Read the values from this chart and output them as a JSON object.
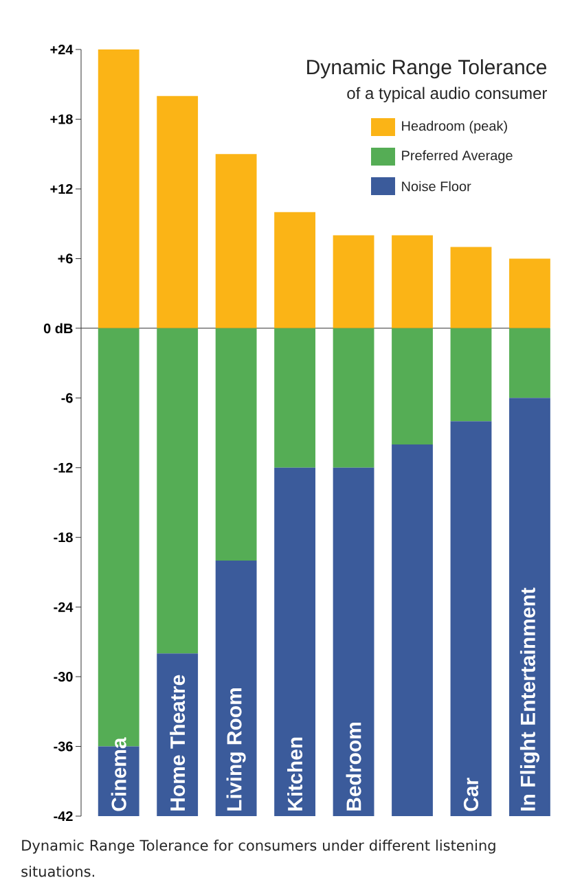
{
  "chart_data": {
    "type": "bar",
    "title": "Dynamic Range Tolerance",
    "subtitle": "of a typical audio consumer",
    "categories": [
      "Cinema",
      "Home Theatre",
      "Living Room",
      "Kitchen",
      "Bedroom",
      null,
      "Car",
      "In Flight Entertainment"
    ],
    "series": [
      {
        "name": "Headroom (peak)",
        "color": "#fbb416",
        "values": [
          24,
          20,
          15,
          10,
          8,
          8,
          7,
          6
        ]
      },
      {
        "name": "Preferred Average",
        "color": "#55ad55",
        "values": [
          -36,
          -28,
          -20,
          -12,
          -12,
          -10,
          -8,
          -6
        ]
      },
      {
        "name": "Noise Floor",
        "color": "#3b5b9b",
        "values": [
          -6,
          -14,
          -22,
          -30,
          -30,
          -32,
          -34,
          -36
        ]
      }
    ],
    "stacked": true,
    "ylim": [
      -42,
      24
    ],
    "yticks": [
      {
        "value": 24,
        "label": "+24"
      },
      {
        "value": 18,
        "label": "+18"
      },
      {
        "value": 12,
        "label": "+12"
      },
      {
        "value": 6,
        "label": "+6"
      },
      {
        "value": 0,
        "label": "0 dB"
      },
      -6,
      -12,
      -18,
      -24,
      -30,
      -36,
      -42
    ],
    "legend": "top right",
    "annotations": [
      "Dynamic Range Tolerance for consumers under different listening situations."
    ]
  }
}
